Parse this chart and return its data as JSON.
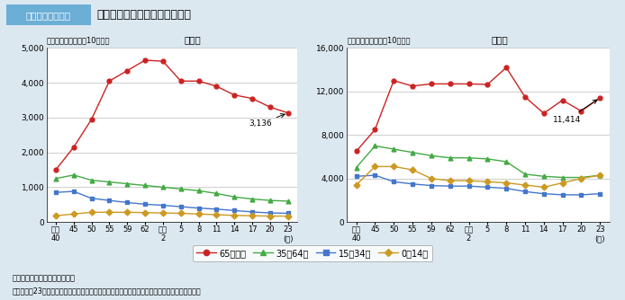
{
  "title_box": "図１－２－３－５",
  "title_main": "年齢階級別にみた受療率の推移",
  "x_labels": [
    "昭和\n40",
    "45",
    "50",
    "55",
    "59",
    "62",
    "平成\n2",
    "5",
    "8",
    "11",
    "14",
    "17",
    "20",
    "23\n(年)"
  ],
  "inpatient_65plus": [
    1500,
    2150,
    2950,
    4050,
    4350,
    4650,
    4620,
    4050,
    4050,
    3900,
    3650,
    3550,
    3300,
    3136
  ],
  "inpatient_35_64": [
    1250,
    1350,
    1200,
    1150,
    1100,
    1050,
    1000,
    950,
    900,
    820,
    720,
    660,
    620,
    600
  ],
  "inpatient_15_34": [
    850,
    880,
    680,
    620,
    560,
    510,
    480,
    440,
    400,
    370,
    330,
    290,
    260,
    250
  ],
  "inpatient_0_14": [
    180,
    230,
    280,
    280,
    280,
    270,
    260,
    250,
    230,
    210,
    190,
    180,
    170,
    170
  ],
  "outpatient_65plus": [
    6500,
    8500,
    13000,
    12500,
    12700,
    12700,
    12700,
    12650,
    14200,
    11500,
    10000,
    11200,
    10200,
    11414
  ],
  "outpatient_35_64": [
    5000,
    7000,
    6700,
    6400,
    6100,
    5900,
    5900,
    5800,
    5550,
    4400,
    4200,
    4100,
    4100,
    4300
  ],
  "outpatient_15_34": [
    4200,
    4300,
    3700,
    3500,
    3350,
    3300,
    3300,
    3200,
    3100,
    2800,
    2600,
    2500,
    2500,
    2600
  ],
  "outpatient_0_14": [
    3400,
    5100,
    5100,
    4800,
    4000,
    3800,
    3800,
    3700,
    3600,
    3400,
    3200,
    3600,
    4000,
    4300
  ],
  "color_65plus": "#cc2222",
  "color_35_64": "#44aa44",
  "color_15_34": "#4477cc",
  "color_0_14": "#cc9922",
  "inpatient_title_left": "（各年齢階級別人口10万対）",
  "inpatient_title_right": "入　院",
  "outpatient_title_left": "（各年齢階級別人口10万対）",
  "outpatient_title_right": "外　来",
  "inpatient_ylim": [
    0,
    5000
  ],
  "outpatient_ylim": [
    0,
    16000
  ],
  "inpatient_yticks": [
    0,
    1000,
    2000,
    3000,
    4000,
    5000
  ],
  "outpatient_yticks": [
    0,
    4000,
    8000,
    12000,
    16000
  ],
  "annotation_inpatient": "3,136",
  "annotation_outpatient": "11,414",
  "legend_labels": [
    "65歳以上",
    "35～64歳",
    "15～34歳",
    "0～14歳"
  ],
  "footer_line1": "資料：厚生労働省「患者調査」",
  "footer_line2": "（注）平成23年の数値は、宮城県の石巻医療圏、気仙沼医療圏及び福島県を除いた数値である。",
  "bg_color": "#dce8f0",
  "plot_bg": "#ffffff",
  "grid_color": "#bbbbbb"
}
